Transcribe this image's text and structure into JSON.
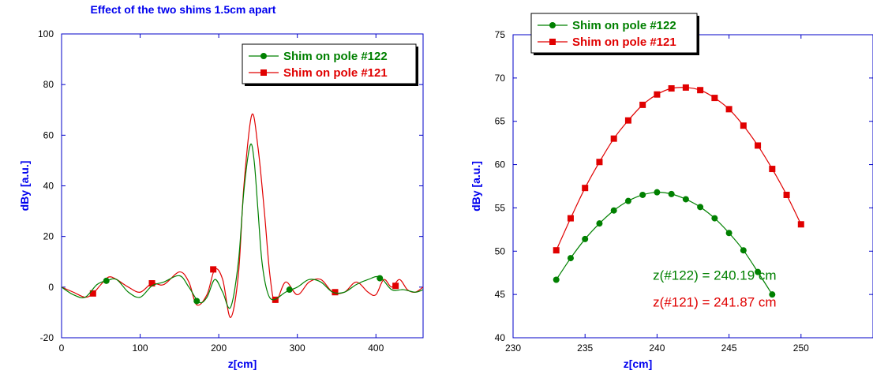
{
  "chart_data": [
    {
      "type": "line",
      "title": "Effect of the two shims 1.5cm apart",
      "xlabel": "z[cm]",
      "ylabel": "dBy [a.u.]",
      "xlim": [
        0,
        460
      ],
      "ylim": [
        -20,
        100
      ],
      "xticks": [
        0,
        100,
        200,
        300,
        400
      ],
      "yticks": [
        -20,
        0,
        20,
        40,
        60,
        80,
        100
      ],
      "xtick_labels": [
        "0",
        "100",
        "200",
        "300",
        "400"
      ],
      "ytick_labels": [
        "-20",
        "0",
        "20",
        "40",
        "60",
        "80",
        "100"
      ],
      "legend_position": "top-right",
      "grid": false,
      "series": [
        {
          "name": "Shim on pole #122",
          "color": "#008000",
          "marker": "circle",
          "x": [
            0,
            15,
            30,
            45,
            57,
            70,
            85,
            100,
            115,
            130,
            150,
            162,
            175,
            185,
            195,
            205,
            215,
            225,
            232,
            240,
            245,
            250,
            255,
            262,
            270,
            285,
            300,
            315,
            330,
            345,
            360,
            375,
            390,
            405,
            420,
            435,
            450,
            460
          ],
          "y": [
            0,
            -3,
            -4,
            1,
            2.5,
            3,
            -2,
            -4,
            0.5,
            2,
            4.5,
            0,
            -6,
            -4,
            3,
            -2,
            -8,
            10,
            38,
            56,
            50,
            30,
            10,
            -2,
            -5,
            -2,
            0,
            3,
            2,
            -2,
            -2,
            1,
            3,
            4,
            -1,
            -1,
            -2,
            -1
          ],
          "markers_x": [
            57,
            172,
            290,
            405
          ],
          "markers_y": [
            2.5,
            -5.5,
            -1,
            3.5
          ]
        },
        {
          "name": "Shim on pole #121",
          "color": "#e00000",
          "marker": "square",
          "x": [
            0,
            15,
            30,
            40,
            50,
            60,
            70,
            85,
            100,
            115,
            130,
            150,
            162,
            172,
            185,
            195,
            205,
            215,
            225,
            232,
            242,
            250,
            258,
            265,
            272,
            285,
            300,
            315,
            330,
            345,
            360,
            375,
            390,
            400,
            410,
            420,
            430,
            440,
            450,
            460
          ],
          "y": [
            0,
            -2,
            -4,
            -2.5,
            1,
            4,
            3,
            0,
            -2,
            1.5,
            1,
            6,
            2,
            -7,
            -3,
            7,
            3,
            -12,
            5,
            40,
            68,
            55,
            30,
            5,
            -6,
            2,
            -3,
            2,
            3,
            -2,
            -2,
            2,
            -2,
            -3,
            3,
            0,
            3,
            -1,
            -2,
            0
          ],
          "markers_x": [
            40,
            115,
            193,
            272,
            348,
            425
          ],
          "markers_y": [
            -2.5,
            1.5,
            7,
            -5,
            -2,
            0.5
          ]
        }
      ]
    },
    {
      "type": "line",
      "title": "",
      "xlabel": "z[cm]",
      "ylabel": "dBy [a.u.]",
      "xlim": [
        230,
        255
      ],
      "ylim": [
        40,
        75
      ],
      "xticks": [
        230,
        235,
        240,
        245,
        250
      ],
      "yticks": [
        40,
        45,
        50,
        55,
        60,
        65,
        70,
        75
      ],
      "xtick_labels": [
        "230",
        "235",
        "240",
        "245",
        "250"
      ],
      "ytick_labels": [
        "40",
        "45",
        "50",
        "55",
        "60",
        "65",
        "70",
        "75"
      ],
      "legend_position": "top-left",
      "grid": false,
      "annotations": [
        {
          "text": "z(#122) = 240.19 cm",
          "color": "#008000",
          "x": 244,
          "y": 46.7
        },
        {
          "text": "z(#121) = 241.87 cm",
          "color": "#e00000",
          "x": 244,
          "y": 43.6
        }
      ],
      "series": [
        {
          "name": "Shim on pole #122",
          "color": "#008000",
          "marker": "circle",
          "x": [
            233,
            234,
            235,
            236,
            237,
            238,
            239,
            240,
            241,
            242,
            243,
            244,
            245,
            246,
            247,
            248
          ],
          "y": [
            46.7,
            49.2,
            51.4,
            53.2,
            54.7,
            55.8,
            56.5,
            56.8,
            56.6,
            56.0,
            55.1,
            53.8,
            52.1,
            50.1,
            47.6,
            45.0
          ]
        },
        {
          "name": "Shim on pole #121",
          "color": "#e00000",
          "marker": "square",
          "x": [
            233,
            234,
            235,
            236,
            237,
            238,
            239,
            240,
            241,
            242,
            243,
            244,
            245,
            246,
            247,
            248,
            249,
            250
          ],
          "y": [
            50.1,
            53.8,
            57.3,
            60.3,
            63.0,
            65.1,
            66.9,
            68.1,
            68.8,
            68.9,
            68.6,
            67.7,
            66.4,
            64.5,
            62.2,
            59.5,
            56.5,
            53.1
          ]
        }
      ]
    }
  ]
}
